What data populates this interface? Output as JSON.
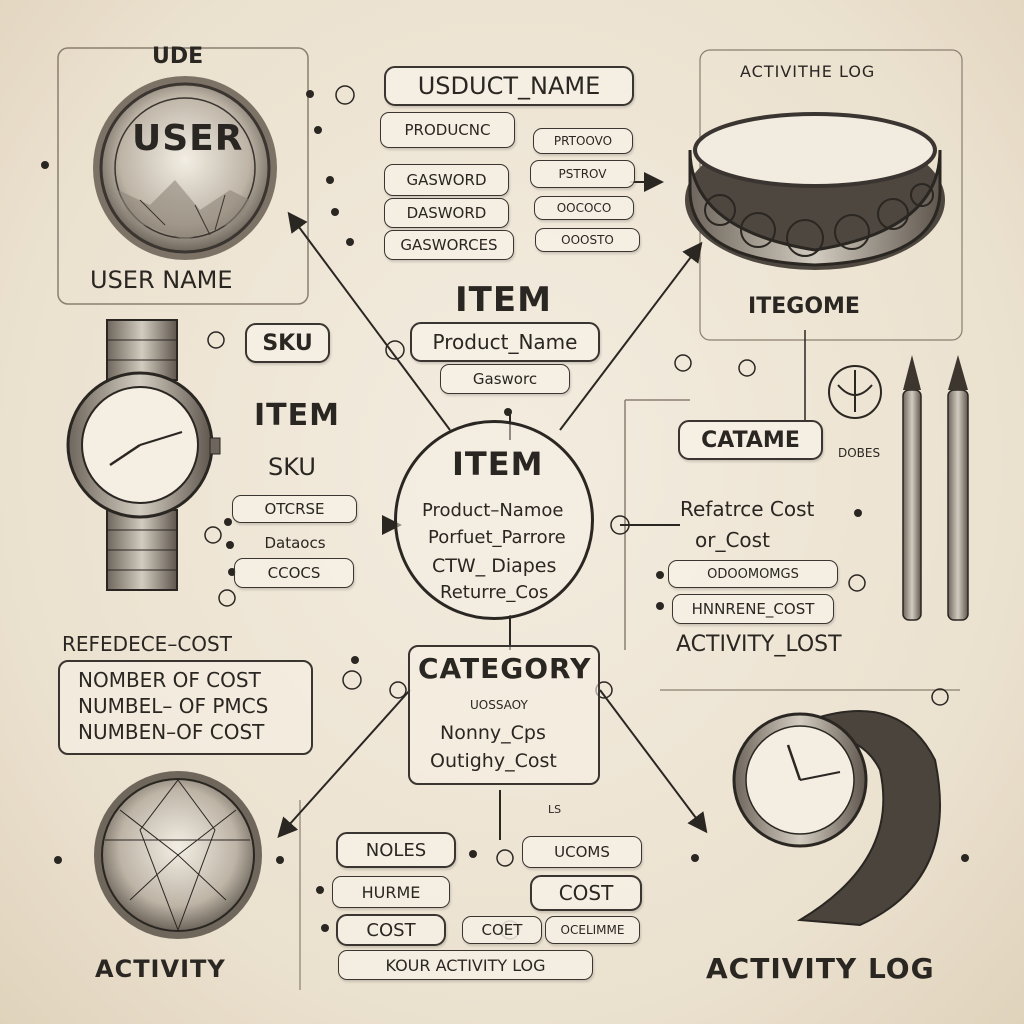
{
  "user_panel": {
    "header": "UDE",
    "title": "USER",
    "caption": "USER NAME",
    "fields": [
      "USDUCT_NAME",
      "PRODUCNC",
      "GASWORD",
      "DASWORD",
      "GASWORCES"
    ],
    "side_fields": [
      "PRTOOVO",
      "PSTROV",
      "OOCOCO",
      "OOOSTO"
    ]
  },
  "activity_log_header": "ACTIVITHE LOG",
  "center_top": {
    "title": "ITEM",
    "product_name": "Product_Name",
    "field": "Gasworc"
  },
  "left_watch": {
    "sku_label": "SKU",
    "item_label": "ITEM",
    "sku_sub": "SKU",
    "fields": [
      "OTCRSE",
      "Dataocs",
      "CCOCS"
    ]
  },
  "center_item": {
    "title": "ITEM",
    "lines": [
      "Product–Namoe",
      "Porfuet_Parrore",
      "CTW_ Diapes",
      "Returre_Cos"
    ]
  },
  "right_panel": {
    "itegome": "ITEGOME",
    "catame": "CATAME",
    "dobes": "DOBES",
    "lines": [
      "Refatrce Cost",
      "or_Cost"
    ],
    "fields": [
      "ODOOMOMGS",
      "HNNRENE_COST"
    ],
    "activity_lost": "ACTIVITY_LOST"
  },
  "left_cost_box": {
    "header": "REFEDECE–COST",
    "lines": [
      "NOMBER OF COST",
      "NUMBEL– OF PMCS",
      "NUMBEN–OF COST"
    ]
  },
  "category": {
    "title": "CATEGORY",
    "sub": "UOSSAOY",
    "lines": [
      "Nonny_Cps",
      "Outighy_Cost"
    ]
  },
  "bottom_fields": {
    "noles": "NOLES",
    "ucoms": "UCOMS",
    "hurme": "HURME",
    "cost_right": "COST",
    "cost_left": "COST",
    "coet": "COET",
    "ocelimme": "OCELIMME",
    "activity_log_pill": "KOUR ACTIVITY LOG",
    "tiny": "LS"
  },
  "footer": {
    "left": "ACTIVITY",
    "right": "ACTIVITY LOG"
  },
  "colors": {
    "ink": "#2a2622",
    "paper": "#efe6d6",
    "metal": "#b9b2a6"
  }
}
